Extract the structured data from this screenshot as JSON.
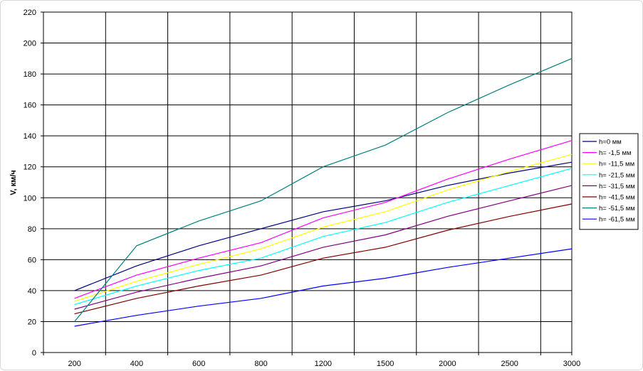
{
  "chart_data": {
    "type": "line",
    "title": "",
    "xlabel": "",
    "ylabel": "V, км/ч",
    "categories": [
      "200",
      "400",
      "600",
      "800",
      "1200",
      "1500",
      "2000",
      "2500",
      "3000"
    ],
    "ylim": [
      0,
      220
    ],
    "yticks": [
      0,
      20,
      40,
      60,
      80,
      100,
      120,
      140,
      160,
      180,
      200,
      220
    ],
    "grid": true,
    "legend_position": "right",
    "series": [
      {
        "name": "h=0 мм",
        "color": "#000080",
        "values": [
          40,
          56,
          69,
          80,
          91,
          98,
          108,
          116,
          123
        ]
      },
      {
        "name": "h= -1,5 мм",
        "color": "#ff00ff",
        "values": [
          35,
          50,
          61,
          71,
          87,
          97,
          112,
          125,
          137
        ]
      },
      {
        "name": "h= -11,5 мм",
        "color": "#ffff00",
        "values": [
          33,
          46,
          57,
          67,
          81,
          91,
          105,
          117,
          128
        ]
      },
      {
        "name": "h= -21,5 мм",
        "color": "#00ffff",
        "values": [
          31,
          43,
          53,
          61,
          75,
          84,
          97,
          108,
          119
        ]
      },
      {
        "name": "h= -31,5 мм",
        "color": "#800080",
        "values": [
          28,
          39,
          48,
          56,
          68,
          76,
          88,
          98,
          108
        ]
      },
      {
        "name": "h= -41,5 мм",
        "color": "#800000",
        "values": [
          25,
          35,
          43,
          50,
          61,
          68,
          79,
          88,
          96
        ]
      },
      {
        "name": "h= -51,5 мм",
        "color": "#008080",
        "values": [
          20,
          69,
          85,
          98,
          120,
          134,
          155,
          173,
          190
        ]
      },
      {
        "name": "h= -61,5 мм",
        "color": "#0000ff",
        "values": [
          17,
          24,
          30,
          35,
          43,
          48,
          55,
          61,
          67
        ]
      }
    ]
  }
}
